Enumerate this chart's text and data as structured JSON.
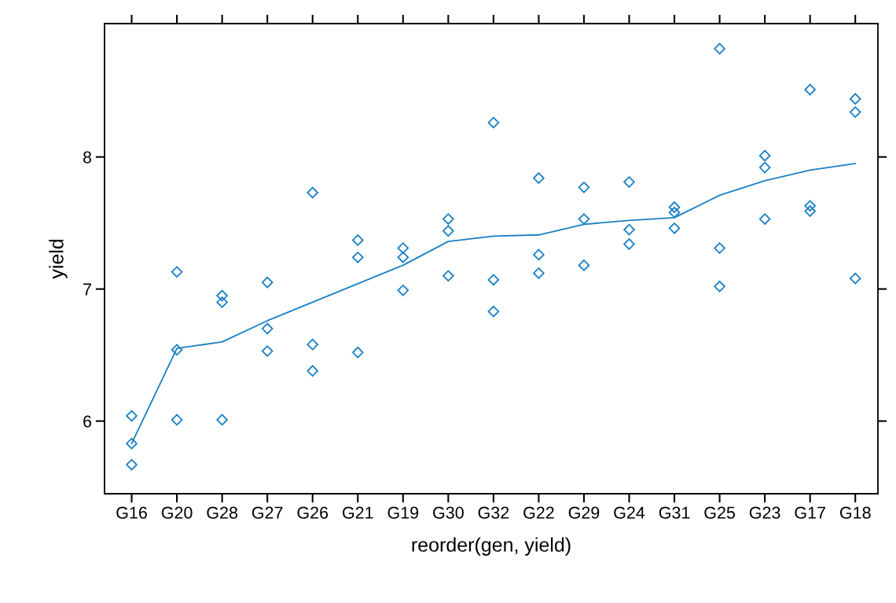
{
  "chart_data": {
    "type": "scatter",
    "xlabel": "reorder(gen, yield)",
    "ylabel": "yield",
    "categories": [
      "G16",
      "G20",
      "G28",
      "G27",
      "G26",
      "G21",
      "G19",
      "G30",
      "G32",
      "G22",
      "G29",
      "G24",
      "G31",
      "G25",
      "G23",
      "G17",
      "G18"
    ],
    "ylim": [
      5.45,
      9.01
    ],
    "yticks": [
      6,
      7,
      8
    ],
    "grid": false,
    "legend": false,
    "series": [
      {
        "color": "#1a80c4",
        "marker": "diamond",
        "x": [
          "G16",
          "G16",
          "G16",
          "G20",
          "G20",
          "G20",
          "G28",
          "G28",
          "G28",
          "G27",
          "G27",
          "G27",
          "G26",
          "G26",
          "G26",
          "G21",
          "G21",
          "G21",
          "G19",
          "G19",
          "G19",
          "G30",
          "G30",
          "G30",
          "G32",
          "G32",
          "G32",
          "G22",
          "G22",
          "G22",
          "G29",
          "G29",
          "G29",
          "G24",
          "G24",
          "G24",
          "G31",
          "G31",
          "G31",
          "G25",
          "G25",
          "G25",
          "G23",
          "G23",
          "G23",
          "G17",
          "G17",
          "G17",
          "G18",
          "G18",
          "G18"
        ],
        "values": [
          6.04,
          5.83,
          5.67,
          7.13,
          6.54,
          6.01,
          6.95,
          6.9,
          6.01,
          7.05,
          6.7,
          6.53,
          7.73,
          6.58,
          6.38,
          7.37,
          7.24,
          6.52,
          7.31,
          7.24,
          6.99,
          7.53,
          7.44,
          7.1,
          8.26,
          7.07,
          6.83,
          7.84,
          7.26,
          7.12,
          7.77,
          7.53,
          7.18,
          7.81,
          7.45,
          7.34,
          7.62,
          7.58,
          7.46,
          8.82,
          7.31,
          7.02,
          8.01,
          7.92,
          7.53,
          8.51,
          7.63,
          7.59,
          8.44,
          8.34,
          7.08
        ]
      },
      {
        "type": "line",
        "color": "#1a80c4",
        "line_style": "solid",
        "marker": "none",
        "values": [
          5.83,
          6.55,
          6.6,
          6.76,
          6.9,
          7.04,
          7.18,
          7.36,
          7.4,
          7.41,
          7.49,
          7.52,
          7.54,
          7.71,
          7.82,
          7.9,
          7.95
        ]
      }
    ]
  }
}
